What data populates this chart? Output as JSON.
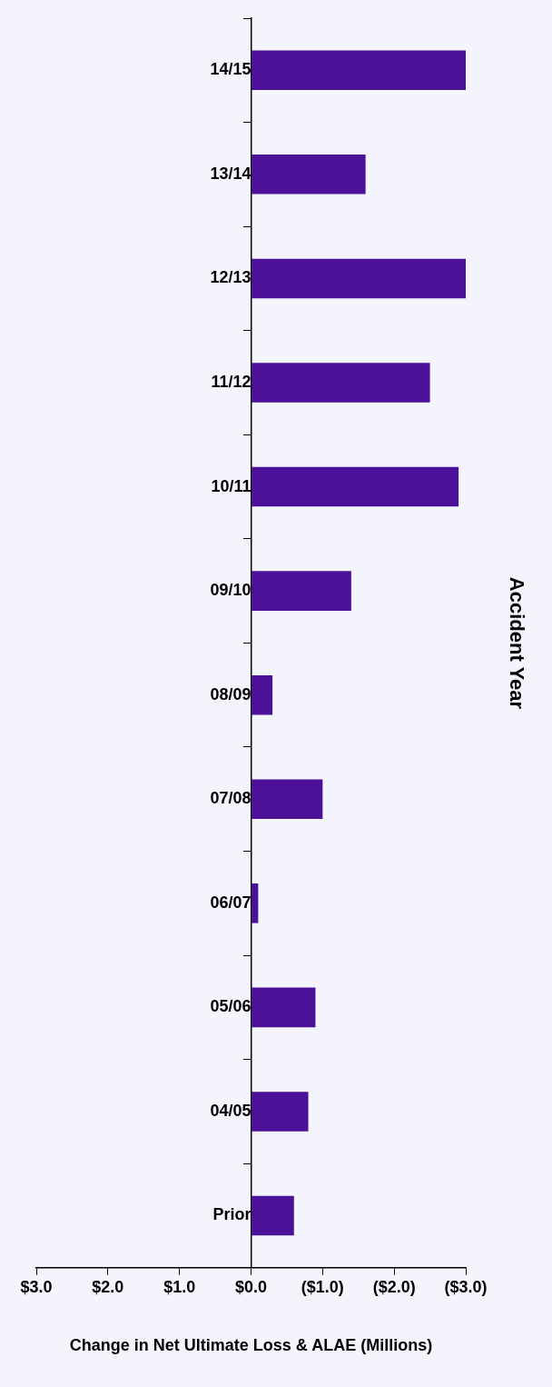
{
  "chart_data": {
    "type": "bar",
    "orientation": "horizontal",
    "xlabel": "Change in Net Ultimate Loss & ALAE (Millions)",
    "ylabel": "Accident Year",
    "categories": [
      "14/15",
      "13/14",
      "12/13",
      "11/12",
      "10/11",
      "09/10",
      "08/09",
      "07/08",
      "06/07",
      "05/06",
      "04/05",
      "Prior"
    ],
    "values": [
      -3.0,
      -1.6,
      -3.0,
      -2.5,
      -2.9,
      -1.4,
      -0.3,
      -1.0,
      -0.1,
      -0.9,
      -0.8,
      -0.6
    ],
    "color": "#4b1199",
    "xlim": [
      3,
      -3
    ],
    "xticks": [
      {
        "value": 3,
        "label": "$3.0"
      },
      {
        "value": 2,
        "label": "$2.0"
      },
      {
        "value": 1,
        "label": "$1.0"
      },
      {
        "value": 0,
        "label": "$0.0"
      },
      {
        "value": -1,
        "label": "($1.0)"
      },
      {
        "value": -2,
        "label": "($2.0)"
      },
      {
        "value": -3,
        "label": "($3.0)"
      }
    ],
    "grid": false,
    "legend": false
  }
}
